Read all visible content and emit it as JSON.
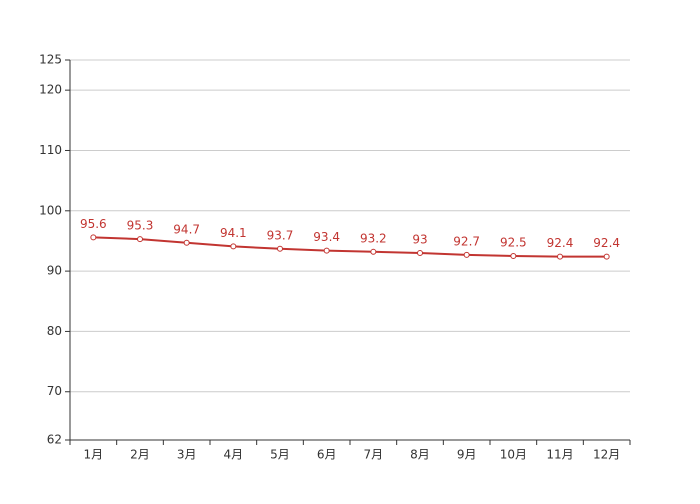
{
  "chart_data": {
    "type": "line",
    "categories": [
      "1月",
      "2月",
      "3月",
      "4月",
      "5月",
      "6月",
      "7月",
      "8月",
      "9月",
      "10月",
      "11月",
      "12月"
    ],
    "series": [
      {
        "color": "#c23531",
        "values": [
          95.6,
          95.3,
          94.7,
          94.1,
          93.7,
          93.4,
          93.2,
          93,
          92.7,
          92.5,
          92.4,
          92.4
        ]
      }
    ],
    "ylim": [
      62,
      125
    ],
    "yticks": [
      62,
      70,
      80,
      90,
      100,
      110,
      120,
      125
    ],
    "grid": true,
    "data_labels": true
  }
}
